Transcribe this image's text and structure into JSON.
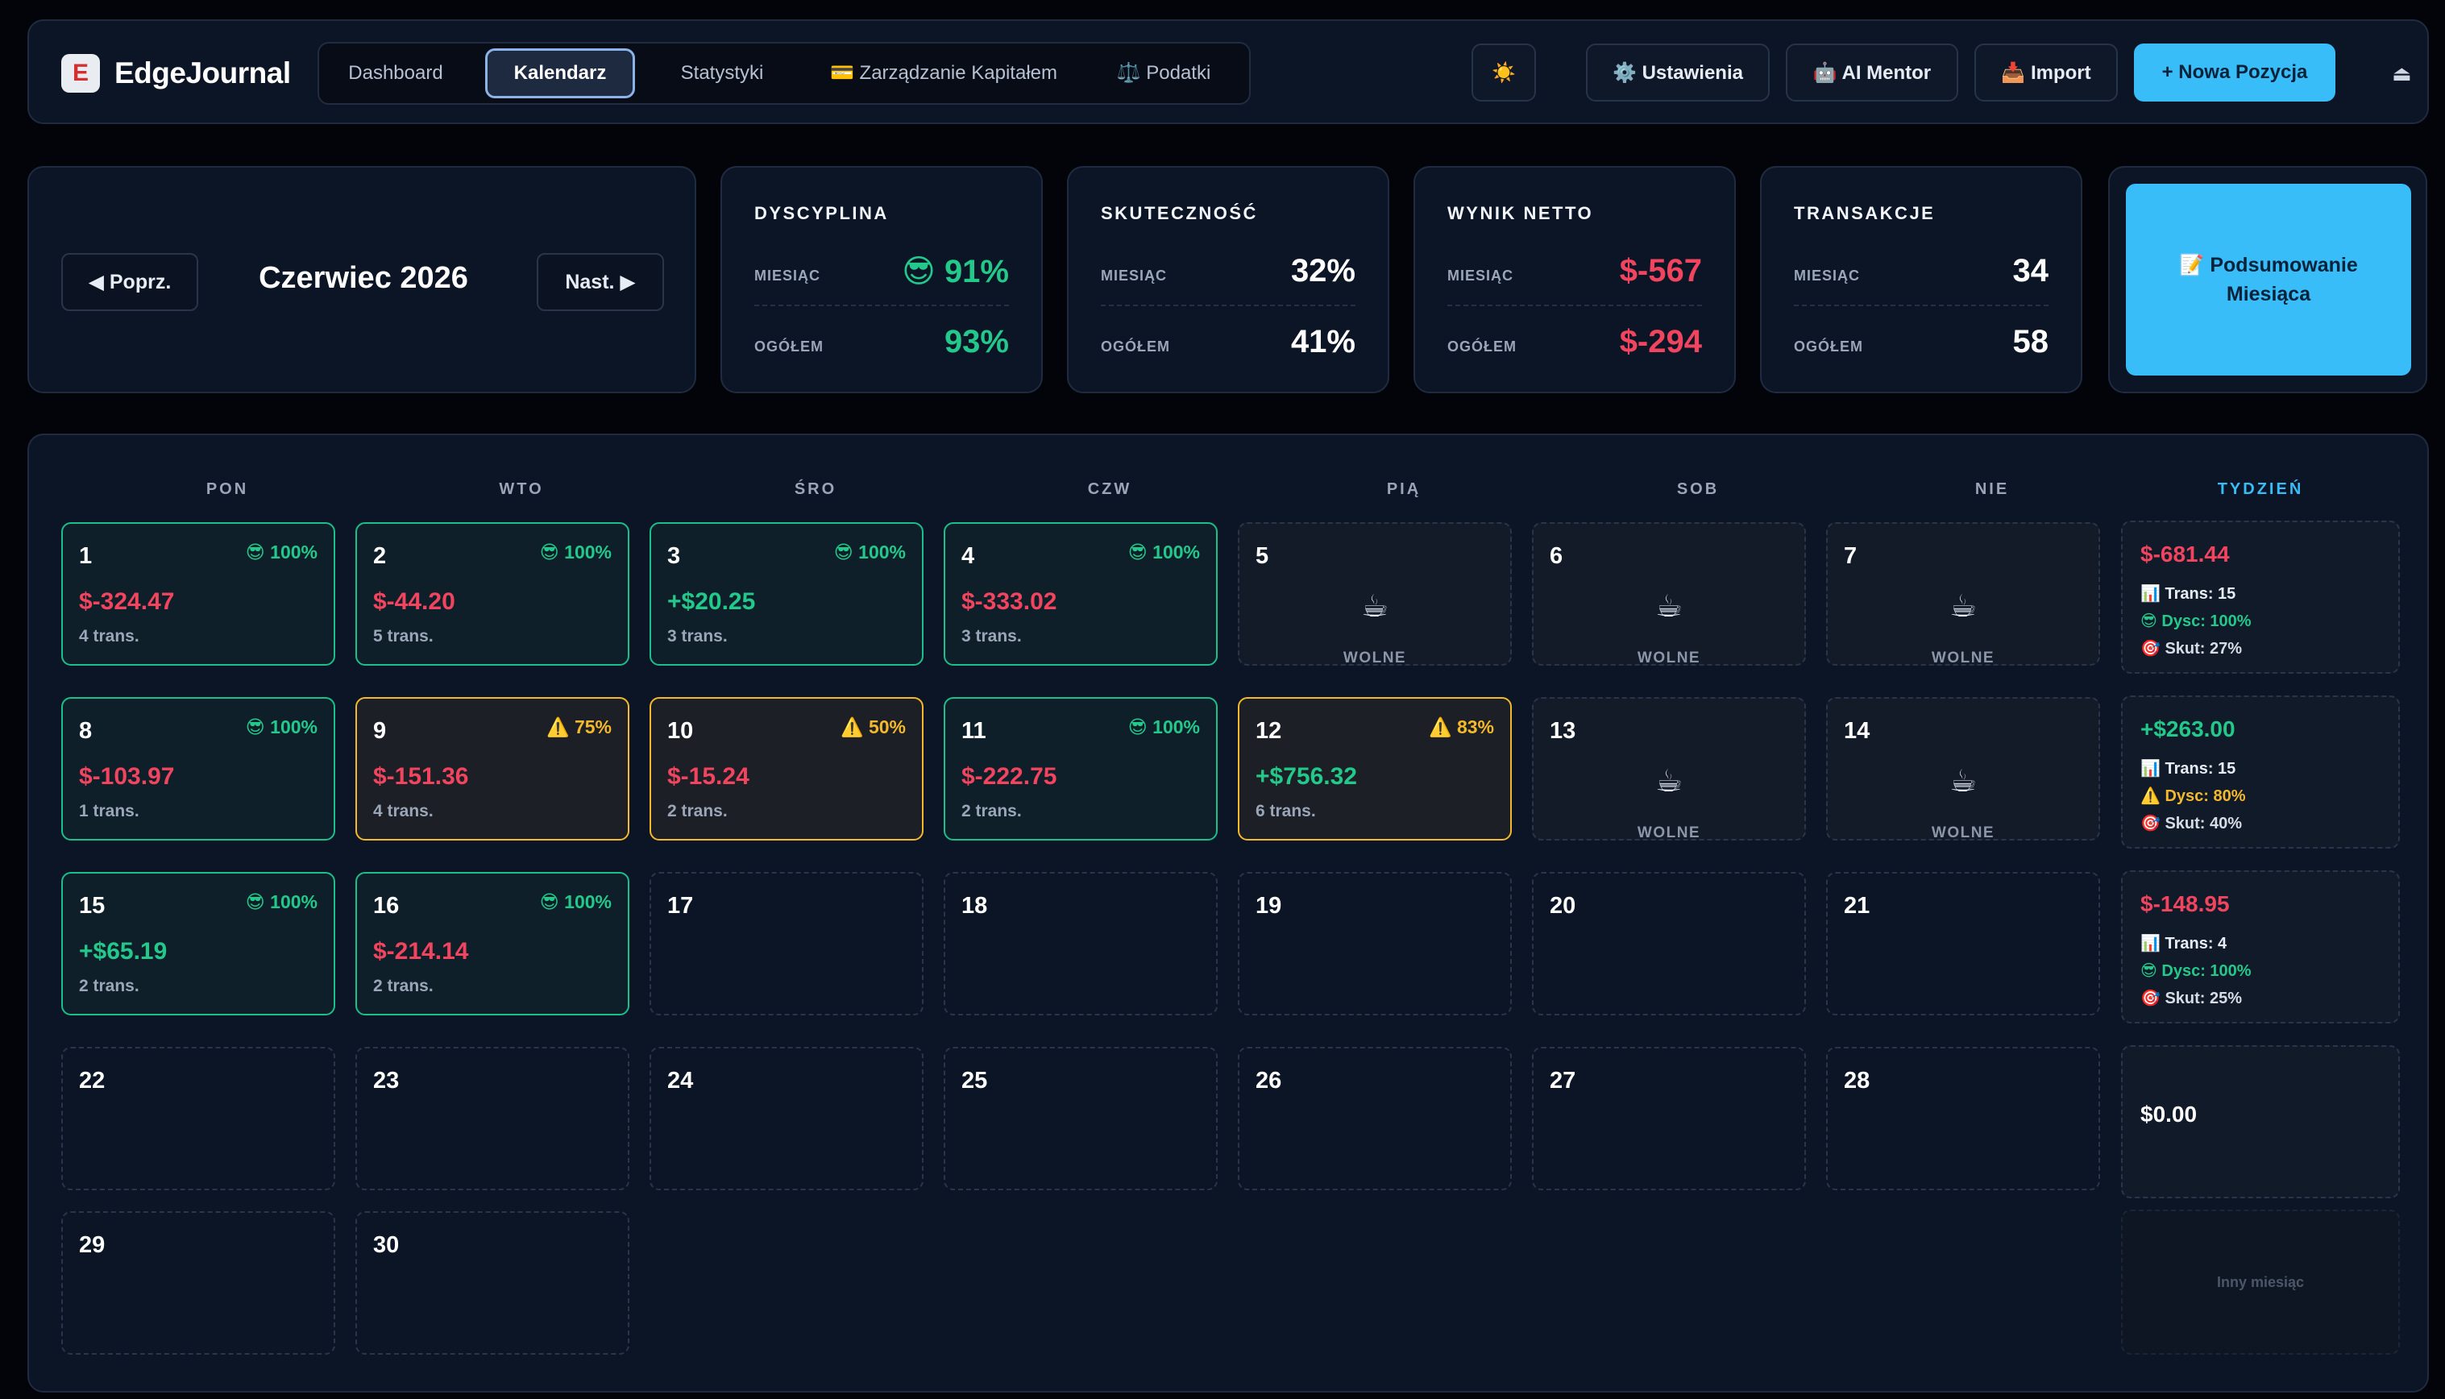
{
  "brand": {
    "logo_letter": "E",
    "name": "EdgeJournal"
  },
  "nav": {
    "tabs": [
      {
        "label": "Dashboard"
      },
      {
        "label": "Kalendarz"
      },
      {
        "label": "Statystyki"
      },
      {
        "label": "💳 Zarządzanie Kapitałem"
      },
      {
        "label": "⚖️ Podatki"
      }
    ],
    "theme_icon": "☀️",
    "settings": "⚙️ Ustawienia",
    "mentor": "🤖 AI Mentor",
    "import": "📥 Import",
    "new_position": "+ Nowa Pozycja",
    "logout_icon": "⏏"
  },
  "month": {
    "prev": "◀ Poprz.",
    "title": "Czerwiec 2026",
    "next": "Nast. ▶"
  },
  "stats": [
    {
      "title": "DYSCYPLINA",
      "month_label": "MIESIĄC",
      "month_value": "😎 91%",
      "total_label": "OGÓŁEM",
      "total_value": "93%"
    },
    {
      "title": "SKUTECZNOŚĆ",
      "month_label": "MIESIĄC",
      "month_value": "32%",
      "total_label": "OGÓŁEM",
      "total_value": "41%"
    },
    {
      "title": "WYNIK NETTO",
      "month_label": "MIESIĄC",
      "month_value": "$-567",
      "total_label": "OGÓŁEM",
      "total_value": "$-294"
    },
    {
      "title": "TRANSAKCJE",
      "month_label": "MIESIĄC",
      "month_value": "34",
      "total_label": "OGÓŁEM",
      "total_value": "58"
    }
  ],
  "summary_button": "📝 Podsumowanie Miesiąca",
  "calendar": {
    "headers": [
      "PON",
      "WTO",
      "ŚRO",
      "CZW",
      "PIĄ",
      "SOB",
      "NIE",
      "TYDZIEŃ"
    ],
    "free_label": "WOLNE",
    "free_icon": "☕",
    "days": [
      {
        "day": "1",
        "badge": "😎 100%",
        "pnl": "$-324.47",
        "trans": "4 trans."
      },
      {
        "day": "2",
        "badge": "😎 100%",
        "pnl": "$-44.20",
        "trans": "5 trans."
      },
      {
        "day": "3",
        "badge": "😎 100%",
        "pnl": "+$20.25",
        "trans": "3 trans."
      },
      {
        "day": "4",
        "badge": "😎 100%",
        "pnl": "$-333.02",
        "trans": "3 trans."
      },
      {
        "day": "5"
      },
      {
        "day": "6"
      },
      {
        "day": "7"
      },
      {
        "day": "8",
        "badge": "😎 100%",
        "pnl": "$-103.97",
        "trans": "1 trans."
      },
      {
        "day": "9",
        "badge": "⚠️ 75%",
        "pnl": "$-151.36",
        "trans": "4 trans."
      },
      {
        "day": "10",
        "badge": "⚠️ 50%",
        "pnl": "$-15.24",
        "trans": "2 trans."
      },
      {
        "day": "11",
        "badge": "😎 100%",
        "pnl": "$-222.75",
        "trans": "2 trans."
      },
      {
        "day": "12",
        "badge": "⚠️ 83%",
        "pnl": "+$756.32",
        "trans": "6 trans."
      },
      {
        "day": "13"
      },
      {
        "day": "14"
      },
      {
        "day": "15",
        "badge": "😎 100%",
        "pnl": "+$65.19",
        "trans": "2 trans."
      },
      {
        "day": "16",
        "badge": "😎 100%",
        "pnl": "$-214.14",
        "trans": "2 trans."
      },
      {
        "day": "17"
      },
      {
        "day": "18"
      },
      {
        "day": "19"
      },
      {
        "day": "20"
      },
      {
        "day": "21"
      },
      {
        "day": "22"
      },
      {
        "day": "23"
      },
      {
        "day": "24"
      },
      {
        "day": "25"
      },
      {
        "day": "26"
      },
      {
        "day": "27"
      },
      {
        "day": "28"
      },
      {
        "day": "29"
      },
      {
        "day": "30"
      }
    ],
    "weeks": [
      {
        "pnl": "$-681.44",
        "trans": "📊 Trans: 15",
        "disc": "😎 Dysc: 100%",
        "eff": "🎯 Skut: 27%"
      },
      {
        "pnl": "+$263.00",
        "trans": "📊 Trans: 15",
        "disc": "⚠️ Dysc: 80%",
        "eff": "🎯 Skut: 40%"
      },
      {
        "pnl": "$-148.95",
        "trans": "📊 Trans: 4",
        "disc": "😎 Dysc: 100%",
        "eff": "🎯 Skut: 25%"
      },
      {
        "pnl": "$0.00"
      },
      {
        "other": "Inny miesiąc"
      }
    ]
  },
  "colors": {
    "accent": "#38bdf8",
    "positive": "#23c98a",
    "negative": "#f0445f",
    "warning": "#f4b82c",
    "background": "#020409",
    "card": "#0c1526"
  }
}
